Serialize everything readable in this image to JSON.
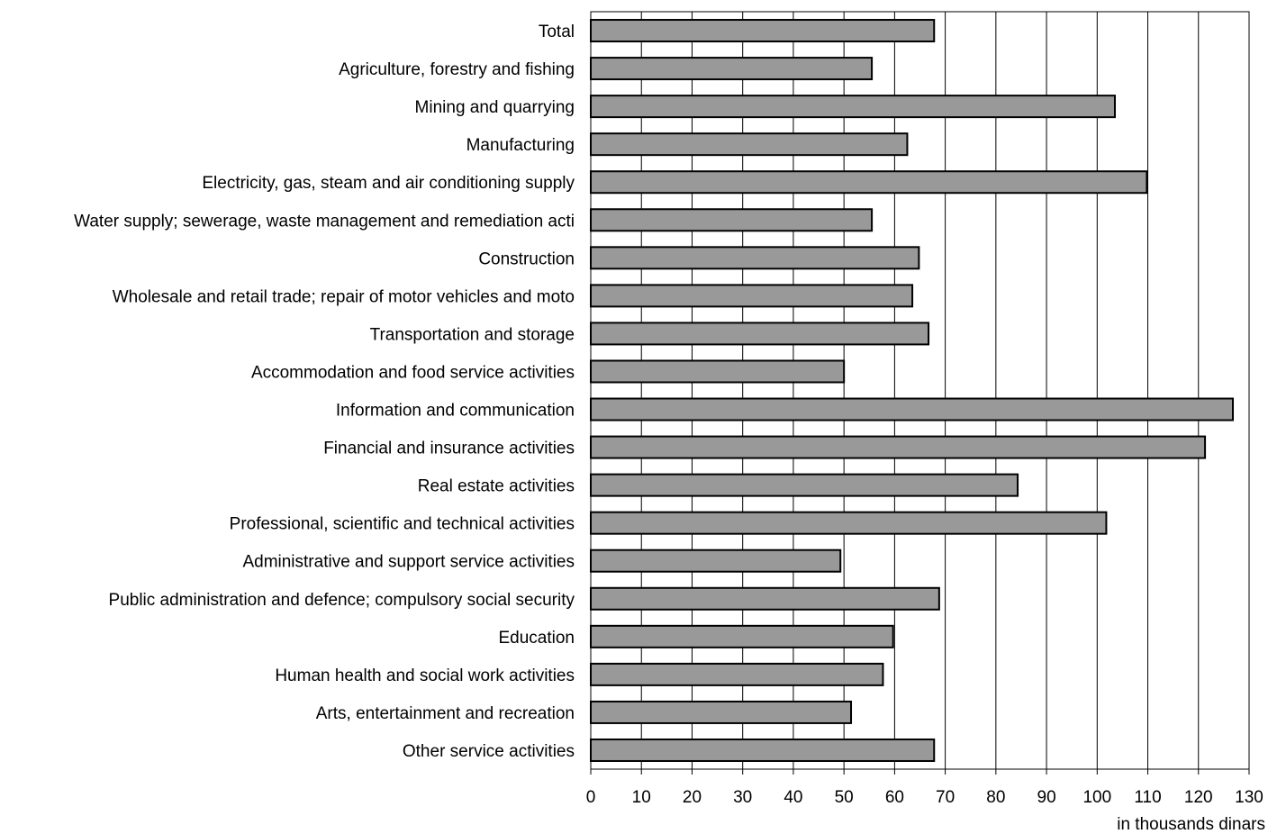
{
  "chart_data": {
    "type": "bar",
    "orientation": "horizontal",
    "title": "",
    "ylabel": "",
    "xlabel": "in thousands dinars",
    "xlim": [
      0,
      130
    ],
    "x_ticks": [
      0,
      10,
      20,
      30,
      40,
      50,
      60,
      70,
      80,
      90,
      100,
      110,
      120,
      130
    ],
    "grid": "vertical",
    "legend": "none",
    "categories": [
      "Total",
      "Agriculture, forestry and fishing",
      "Mining and quarrying",
      "Manufacturing",
      "Electricity, gas, steam and air conditioning supply",
      "Water supply; sewerage, waste management and remediation acti",
      "Construction",
      "Wholesale and retail trade; repair of motor vehicles and moto",
      "Transportation and storage",
      "Accommodation and food service activities",
      "Information and communication",
      "Financial and insurance activities",
      "Real estate activities",
      "Professional, scientific and technical activities",
      "Administrative and support service activities",
      "Public administration and defence; compulsory social security",
      "Education",
      "Human health and social work activities",
      "Arts, entertainment and recreation",
      "Other service activities"
    ],
    "values": [
      67.8,
      55.5,
      103.5,
      62.5,
      109.8,
      55.5,
      64.8,
      63.5,
      66.7,
      50.0,
      126.8,
      121.3,
      84.3,
      101.8,
      49.3,
      68.8,
      59.7,
      57.7,
      51.4,
      67.8
    ],
    "colors": {
      "bar_fill": "#999999",
      "bar_stroke": "#000000",
      "grid": "#000000"
    }
  }
}
